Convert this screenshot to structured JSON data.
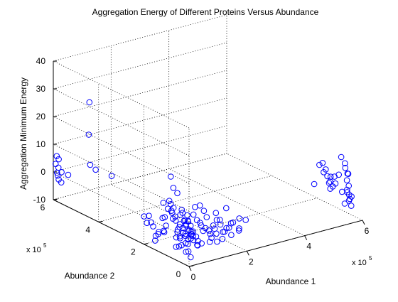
{
  "chart_data": {
    "type": "scatter3d",
    "title": "Aggregation Energy of Different Proteins Versus Abundance",
    "xlabel": "Abundance 1",
    "ylabel": "Abundance 2",
    "zlabel": "Aggregation Minimum Energy",
    "x_multiplier_label": "x 10",
    "x_multiplier_exp": "5",
    "y_multiplier_label": "x 10",
    "y_multiplier_exp": "5",
    "xlim": [
      0,
      600000
    ],
    "ylim": [
      0,
      600000
    ],
    "zlim": [
      -10,
      40
    ],
    "xticks": [
      0,
      200000,
      400000,
      600000
    ],
    "xtick_labels": [
      "0",
      "2",
      "4",
      "6"
    ],
    "yticks": [
      0,
      200000,
      400000,
      600000
    ],
    "ytick_labels": [
      "0",
      "2",
      "4",
      "6"
    ],
    "zticks": [
      -10,
      0,
      10,
      20,
      30,
      40
    ],
    "ztick_labels": [
      "-10",
      "0",
      "10",
      "20",
      "30",
      "40"
    ],
    "grid": true,
    "marker": "open-circle",
    "marker_color": "#0000ff",
    "points": [
      {
        "x": 4000,
        "y": 595000,
        "z": 3
      },
      {
        "x": 5000,
        "y": 590000,
        "z": 0
      },
      {
        "x": 6000,
        "y": 585000,
        "z": 2
      },
      {
        "x": 3000,
        "y": 580000,
        "z": -2
      },
      {
        "x": 7000,
        "y": 585000,
        "z": 5
      },
      {
        "x": 8000,
        "y": 575000,
        "z": -3
      },
      {
        "x": 5000,
        "y": 570000,
        "z": 1
      },
      {
        "x": 4000,
        "y": 590000,
        "z": 6
      },
      {
        "x": 6000,
        "y": 588000,
        "z": -1
      },
      {
        "x": 20000,
        "y": 560000,
        "z": 0
      },
      {
        "x": 60000,
        "y": 520000,
        "z": 15
      },
      {
        "x": 70000,
        "y": 530000,
        "z": 26
      },
      {
        "x": 65000,
        "y": 520000,
        "z": 4
      },
      {
        "x": 80000,
        "y": 515000,
        "z": 2
      },
      {
        "x": 100000,
        "y": 470000,
        "z": 1
      },
      {
        "x": 5000,
        "y": 120000,
        "z": 8
      },
      {
        "x": 6000,
        "y": 115000,
        "z": 3
      },
      {
        "x": 4000,
        "y": 118000,
        "z": -2
      },
      {
        "x": 8000,
        "y": 112000,
        "z": 0
      },
      {
        "x": 25000,
        "y": 110000,
        "z": 5
      },
      {
        "x": 15000,
        "y": 100000,
        "z": 18
      },
      {
        "x": 20000,
        "y": 95000,
        "z": 14
      },
      {
        "x": 30000,
        "y": 90000,
        "z": 12
      },
      {
        "x": 10000,
        "y": 130000,
        "z": 2
      },
      {
        "x": 12000,
        "y": 125000,
        "z": -3
      },
      {
        "x": 3000,
        "y": 60000,
        "z": -2
      },
      {
        "x": 4000,
        "y": 55000,
        "z": 1
      },
      {
        "x": 2000,
        "y": 62000,
        "z": 4
      },
      {
        "x": 5000,
        "y": 58000,
        "z": 0
      },
      {
        "x": 6000,
        "y": 52000,
        "z": -5
      },
      {
        "x": 8000,
        "y": 50000,
        "z": 3
      },
      {
        "x": 3000,
        "y": 45000,
        "z": -1
      },
      {
        "x": 10000,
        "y": 40000,
        "z": 2
      },
      {
        "x": 4000,
        "y": 38000,
        "z": -4
      },
      {
        "x": 15000,
        "y": 35000,
        "z": 0
      },
      {
        "x": 6000,
        "y": 30000,
        "z": 5
      },
      {
        "x": 20000,
        "y": 30000,
        "z": -2
      },
      {
        "x": 2000,
        "y": 28000,
        "z": 1
      },
      {
        "x": 9000,
        "y": 25000,
        "z": -6
      },
      {
        "x": 25000,
        "y": 25000,
        "z": 3
      },
      {
        "x": 5000,
        "y": 22000,
        "z": 0
      },
      {
        "x": 12000,
        "y": 20000,
        "z": -3
      },
      {
        "x": 30000,
        "y": 20000,
        "z": 1
      },
      {
        "x": 3000,
        "y": 18000,
        "z": 4
      },
      {
        "x": 18000,
        "y": 15000,
        "z": -1
      },
      {
        "x": 40000,
        "y": 15000,
        "z": -4
      },
      {
        "x": 7000,
        "y": 12000,
        "z": 2
      },
      {
        "x": 22000,
        "y": 10000,
        "z": 0
      },
      {
        "x": 50000,
        "y": 10000,
        "z": 3
      },
      {
        "x": 4000,
        "y": 8000,
        "z": -5
      },
      {
        "x": 14000,
        "y": 6000,
        "z": 1
      },
      {
        "x": 35000,
        "y": 5000,
        "z": -2
      },
      {
        "x": 60000,
        "y": 4000,
        "z": 2
      },
      {
        "x": 8000,
        "y": 3000,
        "z": -7
      },
      {
        "x": 26000,
        "y": 2000,
        "z": 0
      },
      {
        "x": 45000,
        "y": 2000,
        "z": -3
      },
      {
        "x": 70000,
        "y": 1000,
        "z": 1
      },
      {
        "x": 2000,
        "y": 1000,
        "z": 3
      },
      {
        "x": 16000,
        "y": 1000,
        "z": -1
      },
      {
        "x": 80000,
        "y": 3000,
        "z": -2
      },
      {
        "x": 90000,
        "y": 2000,
        "z": 1
      },
      {
        "x": 100000,
        "y": 4000,
        "z": -4
      },
      {
        "x": 110000,
        "y": 2000,
        "z": 2
      },
      {
        "x": 120000,
        "y": 3000,
        "z": -1
      },
      {
        "x": 10000,
        "y": 70000,
        "z": -6
      },
      {
        "x": 20000,
        "y": 65000,
        "z": -3
      },
      {
        "x": 35000,
        "y": 60000,
        "z": -5
      },
      {
        "x": 50000,
        "y": 55000,
        "z": -2
      },
      {
        "x": 65000,
        "y": 45000,
        "z": -6
      },
      {
        "x": 80000,
        "y": 40000,
        "z": -1
      },
      {
        "x": 95000,
        "y": 30000,
        "z": -5
      },
      {
        "x": 110000,
        "y": 20000,
        "z": -2
      },
      {
        "x": 125000,
        "y": 12000,
        "z": -4
      },
      {
        "x": 40000,
        "y": 80000,
        "z": 5
      },
      {
        "x": 55000,
        "y": 75000,
        "z": 2
      },
      {
        "x": 70000,
        "y": 70000,
        "z": 4
      },
      {
        "x": 85000,
        "y": 60000,
        "z": 1
      },
      {
        "x": 100000,
        "y": 50000,
        "z": 3
      },
      {
        "x": 115000,
        "y": 40000,
        "z": 0
      },
      {
        "x": 130000,
        "y": 30000,
        "z": 2
      },
      {
        "x": 145000,
        "y": 20000,
        "z": -1
      },
      {
        "x": 160000,
        "y": 10000,
        "z": 1
      },
      {
        "x": 150000,
        "y": 5000,
        "z": -3
      },
      {
        "x": 140000,
        "y": 2000,
        "z": 0
      },
      {
        "x": 175000,
        "y": 3000,
        "z": -2
      },
      {
        "x": 180000,
        "y": 8000,
        "z": 2
      },
      {
        "x": 60000,
        "y": 90000,
        "z": 0
      },
      {
        "x": 75000,
        "y": 85000,
        "z": -3
      },
      {
        "x": 90000,
        "y": 80000,
        "z": 1
      },
      {
        "x": 45000,
        "y": 100000,
        "z": -1
      },
      {
        "x": 30000,
        "y": 110000,
        "z": 2
      },
      {
        "x": 120000,
        "y": 60000,
        "z": -4
      },
      {
        "x": 135000,
        "y": 50000,
        "z": 1
      },
      {
        "x": 150000,
        "y": 35000,
        "z": -3
      },
      {
        "x": 165000,
        "y": 25000,
        "z": 0
      },
      {
        "x": 185000,
        "y": 15000,
        "z": -2
      },
      {
        "x": 200000,
        "y": 5000,
        "z": 1
      },
      {
        "x": 2000,
        "y": 90000,
        "z": 10
      },
      {
        "x": 1000,
        "y": 95000,
        "z": 7
      },
      {
        "x": 3000,
        "y": 85000,
        "z": 9
      },
      {
        "x": 4000,
        "y": 80000,
        "z": 6
      },
      {
        "x": 5000,
        "y": 75000,
        "z": 8
      },
      {
        "x": 7000,
        "y": 70000,
        "z": 5
      },
      {
        "x": 1000,
        "y": 40000,
        "z": 7
      },
      {
        "x": 2000,
        "y": 35000,
        "z": 9
      },
      {
        "x": 1000,
        "y": 20000,
        "z": 6
      },
      {
        "x": 2000,
        "y": 10000,
        "z": 8
      },
      {
        "x": 1000,
        "y": 5000,
        "z": 6
      },
      {
        "x": 100000,
        "y": 80000,
        "z": 6
      },
      {
        "x": 110000,
        "y": 75000,
        "z": 4
      },
      {
        "x": 95000,
        "y": 95000,
        "z": 5
      },
      {
        "x": 140000,
        "y": 60000,
        "z": 3
      },
      {
        "x": 160000,
        "y": 40000,
        "z": 5
      },
      {
        "x": 2000,
        "y": 150000,
        "z": -5
      },
      {
        "x": 1000,
        "y": 160000,
        "z": -2
      },
      {
        "x": 3000,
        "y": 140000,
        "z": -4
      },
      {
        "x": 2000,
        "y": 170000,
        "z": -1
      },
      {
        "x": 4000,
        "y": 155000,
        "z": -7
      },
      {
        "x": 1000,
        "y": 135000,
        "z": -3
      },
      {
        "x": 2000,
        "y": 180000,
        "z": 1
      },
      {
        "x": 3000,
        "y": 190000,
        "z": -2
      },
      {
        "x": 1000,
        "y": 200000,
        "z": 0
      },
      {
        "x": 550000,
        "y": 30000,
        "z": 13
      },
      {
        "x": 560000,
        "y": 25000,
        "z": 9
      },
      {
        "x": 555000,
        "y": 20000,
        "z": 11
      },
      {
        "x": 565000,
        "y": 18000,
        "z": 7
      },
      {
        "x": 558000,
        "y": 15000,
        "z": 5
      },
      {
        "x": 562000,
        "y": 12000,
        "z": 3
      },
      {
        "x": 555000,
        "y": 10000,
        "z": 1
      },
      {
        "x": 560000,
        "y": 8000,
        "z": 0
      },
      {
        "x": 558000,
        "y": 6000,
        "z": -2
      },
      {
        "x": 565000,
        "y": 5000,
        "z": -4
      },
      {
        "x": 552000,
        "y": 5000,
        "z": 8
      },
      {
        "x": 570000,
        "y": 10000,
        "z": -1
      },
      {
        "x": 505000,
        "y": 50000,
        "z": 8
      },
      {
        "x": 525000,
        "y": 45000,
        "z": 6
      },
      {
        "x": 530000,
        "y": 30000,
        "z": 4
      },
      {
        "x": 480000,
        "y": 60000,
        "z": 4
      },
      {
        "x": 520000,
        "y": 40000,
        "z": 2
      },
      {
        "x": 540000,
        "y": 28000,
        "z": 7
      },
      {
        "x": 545000,
        "y": 20000,
        "z": 1
      },
      {
        "x": 548000,
        "y": 12000,
        "z": -3
      },
      {
        "x": 553000,
        "y": 8000,
        "z": 2
      },
      {
        "x": 568000,
        "y": 15000,
        "z": -2
      },
      {
        "x": 595000,
        "y": 170000,
        "z": 4
      },
      {
        "x": 598000,
        "y": 160000,
        "z": 2
      },
      {
        "x": 596000,
        "y": 150000,
        "z": 0
      },
      {
        "x": 594000,
        "y": 140000,
        "z": -2
      },
      {
        "x": 599000,
        "y": 130000,
        "z": -3
      },
      {
        "x": 597000,
        "y": 120000,
        "z": 1
      },
      {
        "x": 592000,
        "y": 180000,
        "z": 3
      },
      {
        "x": 590000,
        "y": 130000,
        "z": -1
      }
    ]
  }
}
